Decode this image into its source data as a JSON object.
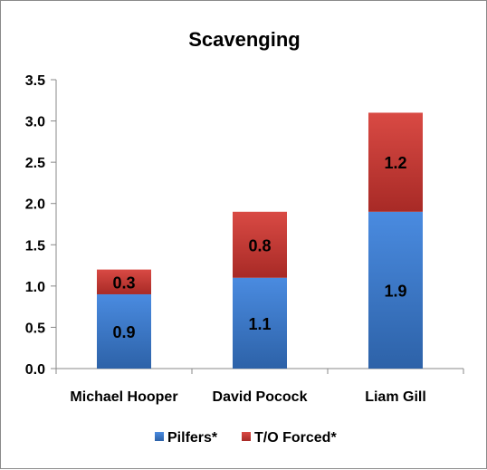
{
  "chart_data": {
    "type": "bar",
    "stacked": true,
    "title": "Scavenging",
    "categories": [
      "Michael Hooper",
      "David Pocock",
      "Liam Gill"
    ],
    "series": [
      {
        "name": "Pilfers*",
        "values": [
          0.9,
          1.1,
          1.9
        ],
        "color": "#3a78c6",
        "labels": [
          "0.9",
          "1.1",
          "1.9"
        ]
      },
      {
        "name": "T/O Forced*",
        "values": [
          0.3,
          0.8,
          1.2
        ],
        "color": "#cc3333",
        "labels": [
          "0.3",
          "0.8",
          "1.2"
        ]
      }
    ],
    "ylim": [
      0,
      3.5
    ],
    "yticks": [
      "0.0",
      "0.5",
      "1.0",
      "1.5",
      "2.0",
      "2.5",
      "3.0",
      "3.5"
    ],
    "grid": false,
    "legend_position": "bottom"
  }
}
